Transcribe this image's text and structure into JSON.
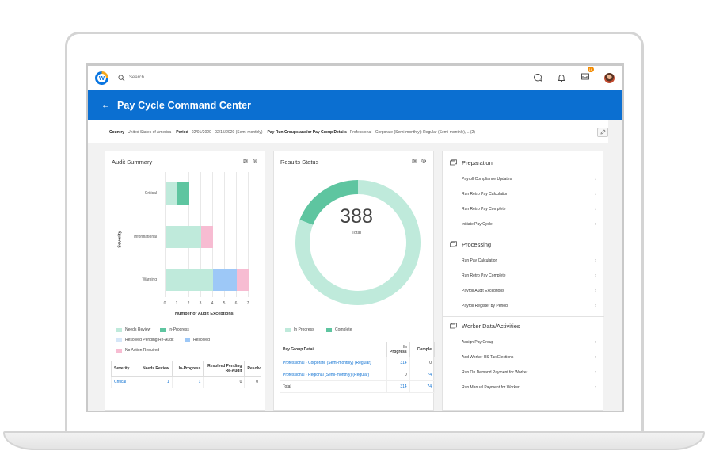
{
  "app": {
    "logo_letter": "w",
    "search": {
      "placeholder": "Search"
    },
    "inbox_badge": "16"
  },
  "header": {
    "back_glyph": "←",
    "title": "Pay Cycle Command Center"
  },
  "filters": {
    "country_label": "Country",
    "country_value": "United States of America",
    "period_label": "Period",
    "period_value": "02/01/2020 - 02/15/2020 (Semi-monthly)",
    "groups_label": "Pay Run Groups and/or Pay Group Details",
    "groups_value": "Professional - Corporate (Semi-monthly): Regular (Semi-monthly), ...(2)"
  },
  "audit_summary": {
    "title": "Audit Summary",
    "legend": [
      "Needs Review",
      "In-Progress",
      "Resolved Pending Re-Audit",
      "Resolved",
      "No Action Required"
    ],
    "table": {
      "headers": [
        "Severity",
        "Needs Review",
        "In-Progress",
        "Resolved Pending Re-Audit",
        "Resolved"
      ],
      "rows": [
        [
          "Critical",
          "1",
          "1",
          "0",
          "0"
        ]
      ]
    }
  },
  "results_status": {
    "title": "Results Status",
    "total": "388",
    "total_label": "Total",
    "legend": [
      "In Progress",
      "Complete"
    ],
    "table": {
      "headers": [
        "Pay Group Detail",
        "In Progress",
        "Comple"
      ],
      "rows": [
        [
          "Professional - Corporate (Semi-monthly) (Regular)",
          "314",
          "0"
        ],
        [
          "Professional - Regional (Semi-monthly) (Regular)",
          "0",
          "74"
        ],
        [
          "Total",
          "314",
          "74"
        ]
      ]
    }
  },
  "tasks": {
    "sections": [
      {
        "title": "Preparation",
        "items": [
          "Payroll Compliance Updates",
          "Run Retro Pay Calculation",
          "Run Retro Pay Complete",
          "Initiate Pay Cycle"
        ]
      },
      {
        "title": "Processing",
        "items": [
          "Run Pay Calculation",
          "Run Retro Pay Complete",
          "Payroll Audit Exceptions",
          "Payroll Register by Period"
        ]
      },
      {
        "title": "Worker Data/Activities",
        "items": [
          "Assign Pay Group",
          "Add Worker US Tax Elections",
          "Run On Demand Payment for Worker",
          "Run Manual Payment for Worker"
        ]
      }
    ]
  },
  "colors": {
    "brand_blue": "#0b6fd1",
    "needs_review": "#bfeadb",
    "in_progress": "#5ec5a0",
    "resolved": "#9dc8f7",
    "no_action": "#f7bcd2"
  },
  "chart_data": [
    {
      "type": "bar",
      "orientation": "horizontal",
      "stacked": true,
      "title": "Audit Summary",
      "categories": [
        "Critical",
        "Informational",
        "Warning"
      ],
      "series": [
        {
          "name": "Needs Review",
          "values": [
            1,
            3,
            4
          ]
        },
        {
          "name": "In-Progress",
          "values": [
            1,
            0,
            0
          ]
        },
        {
          "name": "Resolved Pending Re-Audit",
          "values": [
            0,
            0,
            0
          ]
        },
        {
          "name": "Resolved",
          "values": [
            0,
            0,
            2
          ]
        },
        {
          "name": "No Action Required",
          "values": [
            0,
            1,
            1
          ]
        }
      ],
      "xlabel": "Number of Audit Exceptions",
      "ylabel": "Severity",
      "xticks": [
        0,
        1,
        2,
        3,
        4,
        5,
        6,
        7
      ],
      "xlim": [
        0,
        7
      ],
      "grid": true,
      "legend_position": "bottom"
    },
    {
      "type": "pie",
      "variant": "donut",
      "title": "Results Status",
      "categories": [
        "In Progress",
        "Complete"
      ],
      "values": [
        314,
        74
      ],
      "center_value": "388",
      "center_label": "Total",
      "legend_position": "bottom"
    }
  ]
}
